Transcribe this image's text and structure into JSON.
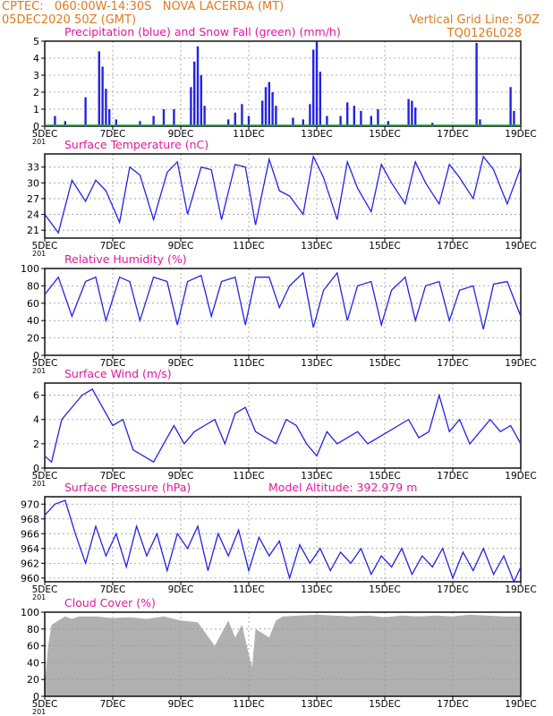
{
  "header": {
    "line1": "CPTEC:   060:00W-14:30S   NOVA LACERDA (MT)",
    "line2": "05DEC2020 50Z (GMT)",
    "grid_note": "Vertical Grid Line: 50Z",
    "code": "TQ0126L028",
    "altitude": "Model Altitude: 392.979  m",
    "year_stub": "201"
  },
  "colors": {
    "header": "#e07a1e",
    "title": "#e0199e",
    "series": "#2323e6",
    "snow": "#10b030",
    "cloud": "#b0b0b0",
    "grid": "#999999"
  },
  "x_ticks": [
    "5DEC",
    "7DEC",
    "9DEC",
    "11DEC",
    "13DEC",
    "15DEC",
    "17DEC",
    "19DEC"
  ],
  "chart_data": [
    {
      "type": "bar",
      "title": "Precipitation (blue) and Snow Fall (green) (mm/h)",
      "ylim": [
        0,
        5
      ],
      "yticks": [
        "0",
        "1",
        "2",
        "3",
        "4",
        "5"
      ],
      "series": [
        {
          "name": "Precipitation",
          "points": [
            [
              0.3,
              0.6
            ],
            [
              0.6,
              0.3
            ],
            [
              1.2,
              1.7
            ],
            [
              1.6,
              4.4
            ],
            [
              1.7,
              3.5
            ],
            [
              1.8,
              2.2
            ],
            [
              1.9,
              1.0
            ],
            [
              2.1,
              0.4
            ],
            [
              2.8,
              0.3
            ],
            [
              3.2,
              0.6
            ],
            [
              3.5,
              1.0
            ],
            [
              3.8,
              1.0
            ],
            [
              4.3,
              2.3
            ],
            [
              4.4,
              3.8
            ],
            [
              4.5,
              4.7
            ],
            [
              4.6,
              3.0
            ],
            [
              4.7,
              1.2
            ],
            [
              5.4,
              0.4
            ],
            [
              5.6,
              0.8
            ],
            [
              5.8,
              1.3
            ],
            [
              6.0,
              0.6
            ],
            [
              6.4,
              1.5
            ],
            [
              6.5,
              2.3
            ],
            [
              6.6,
              2.6
            ],
            [
              6.7,
              2.0
            ],
            [
              6.8,
              1.2
            ],
            [
              7.3,
              0.5
            ],
            [
              7.6,
              0.4
            ],
            [
              7.8,
              1.3
            ],
            [
              7.9,
              4.5
            ],
            [
              8.0,
              5.0
            ],
            [
              8.1,
              3.2
            ],
            [
              8.3,
              0.6
            ],
            [
              8.7,
              0.6
            ],
            [
              8.9,
              1.4
            ],
            [
              9.1,
              1.2
            ],
            [
              9.3,
              0.9
            ],
            [
              9.6,
              0.6
            ],
            [
              9.8,
              1.0
            ],
            [
              10.1,
              0.3
            ],
            [
              10.7,
              1.6
            ],
            [
              10.8,
              1.5
            ],
            [
              10.9,
              1.1
            ],
            [
              11.4,
              0.2
            ],
            [
              12.7,
              4.9
            ],
            [
              12.8,
              0.4
            ],
            [
              13.7,
              2.3
            ],
            [
              13.8,
              0.9
            ]
          ]
        },
        {
          "name": "Snow Fall",
          "points": [
            [
              0,
              0.05
            ],
            [
              14,
              0.05
            ]
          ]
        }
      ]
    },
    {
      "type": "line",
      "title": "Surface Temperature (nC)",
      "ylim": [
        19.5,
        35.5
      ],
      "yticks": [
        "21",
        "24",
        "27",
        "30",
        "33"
      ],
      "series": [
        {
          "name": "Temperature",
          "x": [
            0,
            0.4,
            0.8,
            1.2,
            1.5,
            1.8,
            2.2,
            2.5,
            2.8,
            3.2,
            3.6,
            3.9,
            4.2,
            4.6,
            4.9,
            5.2,
            5.6,
            5.9,
            6.2,
            6.6,
            6.9,
            7.2,
            7.6,
            7.9,
            8.2,
            8.6,
            8.9,
            9.2,
            9.6,
            9.9,
            10.2,
            10.6,
            10.9,
            11.2,
            11.6,
            11.9,
            12.2,
            12.6,
            12.9,
            13.2,
            13.6,
            14.0
          ],
          "y": [
            24,
            20.5,
            30.5,
            26.5,
            30.5,
            28.5,
            22.5,
            33,
            31.5,
            23,
            32,
            34,
            24,
            33,
            32.5,
            23,
            33.5,
            33,
            22,
            34.5,
            28.5,
            27.5,
            24,
            35,
            31,
            23,
            34,
            29,
            24.5,
            33.5,
            30,
            26,
            34,
            30,
            26,
            33.5,
            31,
            27,
            35,
            32.5,
            26,
            33
          ]
        }
      ]
    },
    {
      "type": "line",
      "title": "Relative Humidity (%)",
      "ylim": [
        0,
        100
      ],
      "yticks": [
        "0",
        "20",
        "40",
        "60",
        "80",
        "100"
      ],
      "series": [
        {
          "name": "Relative Humidity",
          "x": [
            0,
            0.4,
            0.8,
            1.2,
            1.5,
            1.8,
            2.2,
            2.5,
            2.8,
            3.2,
            3.6,
            3.9,
            4.2,
            4.6,
            4.9,
            5.2,
            5.6,
            5.9,
            6.2,
            6.6,
            6.9,
            7.2,
            7.6,
            7.9,
            8.2,
            8.6,
            8.9,
            9.2,
            9.6,
            9.9,
            10.2,
            10.6,
            10.9,
            11.2,
            11.6,
            11.9,
            12.2,
            12.6,
            12.9,
            13.2,
            13.6,
            14.0
          ],
          "y": [
            70,
            90,
            45,
            85,
            90,
            40,
            90,
            85,
            40,
            90,
            85,
            35,
            85,
            92,
            45,
            85,
            90,
            35,
            90,
            90,
            55,
            80,
            95,
            32,
            75,
            95,
            40,
            80,
            85,
            35,
            75,
            90,
            40,
            80,
            85,
            40,
            75,
            80,
            30,
            82,
            85,
            45
          ]
        }
      ]
    },
    {
      "type": "line",
      "title": "Surface Wind (m/s)",
      "ylim": [
        0,
        7
      ],
      "yticks": [
        "0",
        "2",
        "4",
        "6"
      ],
      "series": [
        {
          "name": "Wind speed",
          "x": [
            0,
            0.2,
            0.5,
            0.8,
            1.1,
            1.4,
            1.7,
            2.0,
            2.3,
            2.6,
            2.9,
            3.2,
            3.5,
            3.8,
            4.1,
            4.4,
            4.7,
            5.0,
            5.3,
            5.6,
            5.9,
            6.2,
            6.5,
            6.8,
            7.1,
            7.4,
            7.7,
            8.0,
            8.3,
            8.6,
            8.9,
            9.2,
            9.5,
            9.8,
            10.1,
            10.4,
            10.7,
            11.0,
            11.3,
            11.6,
            11.9,
            12.2,
            12.5,
            12.8,
            13.1,
            13.4,
            13.7,
            14.0
          ],
          "y": [
            1,
            0.5,
            4,
            5,
            6,
            6.5,
            5,
            3.5,
            4,
            1.5,
            1,
            0.5,
            2,
            3.5,
            2,
            3,
            3.5,
            4,
            2,
            4.5,
            5,
            3,
            2.5,
            2,
            4,
            3.5,
            2,
            1,
            3,
            2,
            2.5,
            3,
            2,
            2.5,
            3,
            3.5,
            4,
            2.5,
            3,
            6,
            3,
            4,
            2,
            3,
            4,
            3,
            3.5,
            2
          ]
        }
      ]
    },
    {
      "type": "line",
      "title": "Surface Pressure (hPa)",
      "ylim": [
        959.5,
        971
      ],
      "yticks": [
        "960",
        "962",
        "964",
        "966",
        "968",
        "970"
      ],
      "series": [
        {
          "name": "Surface Pressure",
          "x": [
            0,
            0.3,
            0.6,
            0.9,
            1.2,
            1.5,
            1.8,
            2.1,
            2.4,
            2.7,
            3.0,
            3.3,
            3.6,
            3.9,
            4.2,
            4.5,
            4.8,
            5.1,
            5.4,
            5.7,
            6.0,
            6.3,
            6.6,
            6.9,
            7.2,
            7.5,
            7.8,
            8.1,
            8.4,
            8.7,
            9.0,
            9.3,
            9.6,
            9.9,
            10.2,
            10.5,
            10.8,
            11.1,
            11.4,
            11.7,
            12.0,
            12.3,
            12.6,
            12.9,
            13.2,
            13.5,
            13.8,
            14.0
          ],
          "y": [
            968.5,
            970,
            970.5,
            966,
            962,
            967,
            963,
            966,
            961.5,
            967,
            963,
            966,
            961,
            966,
            964,
            967,
            961,
            966,
            963,
            966.5,
            961,
            965.5,
            963,
            965,
            960,
            964.5,
            962,
            964,
            961,
            963.5,
            962,
            964,
            960.5,
            963,
            961.5,
            964,
            960.5,
            963,
            961.5,
            964,
            960,
            963.5,
            961,
            964,
            960.5,
            963,
            959.5,
            961.5
          ]
        }
      ]
    },
    {
      "type": "area",
      "title": "Cloud Cover (%)",
      "ylim": [
        0,
        100
      ],
      "yticks": [
        "0",
        "20",
        "40",
        "60",
        "80",
        "100"
      ],
      "series": [
        {
          "name": "Cloud Cover",
          "x": [
            0,
            0.1,
            0.2,
            0.4,
            0.6,
            0.8,
            1.0,
            1.5,
            2.0,
            2.5,
            3.0,
            3.5,
            4.0,
            4.5,
            5.0,
            5.2,
            5.4,
            5.6,
            5.8,
            6.0,
            6.1,
            6.2,
            6.4,
            6.6,
            6.8,
            7.0,
            7.5,
            8.0,
            8.5,
            9.0,
            9.5,
            10.0,
            10.5,
            11.0,
            11.5,
            12.0,
            12.5,
            13.0,
            13.5,
            14.0
          ],
          "y": [
            15,
            60,
            85,
            90,
            95,
            92,
            95,
            95,
            93,
            94,
            92,
            95,
            90,
            88,
            60,
            75,
            90,
            70,
            85,
            50,
            35,
            80,
            75,
            70,
            90,
            95,
            96,
            97,
            96,
            95,
            96,
            94,
            96,
            95,
            96,
            95,
            97,
            96,
            95,
            95
          ]
        }
      ]
    }
  ]
}
